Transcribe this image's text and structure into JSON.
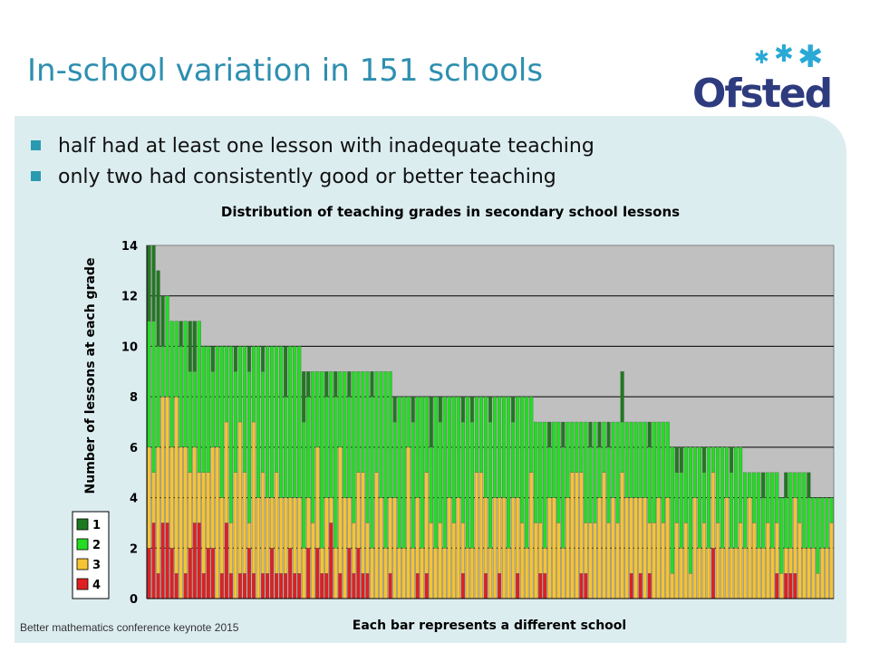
{
  "slide": {
    "title": "In-school variation in 151 schools",
    "bullets": [
      "half had at least one lesson with inadequate teaching",
      "only two had consistently good or better teaching"
    ],
    "footer": "Better mathematics conference keynote 2015",
    "colors": {
      "title": "#2e8fb0",
      "panel": "#dcedf0",
      "bullet": "#2a9ab0",
      "logo": "#2e3b7e",
      "logo_stars": "#2aa9d6"
    }
  },
  "logo": {
    "text": "Ofsted"
  },
  "chart_data": {
    "type": "bar",
    "stacked": true,
    "title": "Distribution of teaching grades in secondary school lessons",
    "xlabel": "Each bar represents a different school",
    "ylabel": "Number of lessons at each grade",
    "ylim": [
      0,
      14
    ],
    "yticks": [
      0,
      2,
      4,
      6,
      8,
      10,
      12,
      14
    ],
    "grid": true,
    "legend_position": "bottom-left",
    "categories_count": 151,
    "totals": [
      14,
      14,
      13,
      12,
      12,
      11,
      11,
      11,
      11,
      11,
      11,
      11,
      10,
      10,
      10,
      10,
      10,
      10,
      10,
      10,
      10,
      10,
      10,
      10,
      10,
      10,
      10,
      10,
      10,
      10,
      10,
      10,
      10,
      10,
      9,
      9,
      9,
      9,
      9,
      9,
      9,
      9,
      9,
      9,
      9,
      9,
      9,
      9,
      9,
      9,
      9,
      9,
      9,
      9,
      8,
      8,
      8,
      8,
      8,
      8,
      8,
      8,
      8,
      8,
      8,
      8,
      8,
      8,
      8,
      8,
      8,
      8,
      8,
      8,
      8,
      8,
      8,
      8,
      8,
      8,
      8,
      8,
      8,
      8,
      8,
      7,
      7,
      7,
      7,
      7,
      7,
      7,
      7,
      7,
      7,
      7,
      7,
      7,
      7,
      7,
      7,
      7,
      7,
      7,
      7,
      7,
      7,
      7,
      7,
      7,
      7,
      7,
      7,
      7,
      7,
      6,
      6,
      6,
      6,
      6,
      6,
      6,
      6,
      6,
      6,
      6,
      6,
      6,
      6,
      6,
      6,
      5,
      5,
      5,
      5,
      5,
      5,
      5,
      5,
      5,
      5,
      5,
      5,
      5,
      5,
      5,
      5,
      4,
      4,
      4,
      4,
      4
    ],
    "series": [
      {
        "name": "1",
        "color": "#1e7a1e",
        "values": [
          3,
          3,
          3,
          2,
          0,
          0,
          0,
          1,
          0,
          2,
          2,
          0,
          0,
          0,
          1,
          0,
          0,
          0,
          0,
          1,
          0,
          0,
          1,
          0,
          0,
          1,
          0,
          0,
          0,
          0,
          2,
          0,
          0,
          0,
          2,
          1,
          0,
          0,
          0,
          1,
          0,
          1,
          0,
          0,
          1,
          0,
          0,
          0,
          0,
          1,
          0,
          0,
          0,
          0,
          1,
          0,
          0,
          0,
          1,
          0,
          0,
          0,
          2,
          0,
          1,
          0,
          0,
          0,
          0,
          1,
          0,
          1,
          0,
          0,
          0,
          1,
          0,
          0,
          0,
          0,
          1,
          0,
          0,
          0,
          0,
          0,
          0,
          0,
          1,
          0,
          0,
          1,
          0,
          0,
          0,
          0,
          0,
          1,
          0,
          1,
          0,
          1,
          0,
          0,
          2,
          0,
          0,
          0,
          0,
          0,
          1,
          0,
          0,
          0,
          0,
          0,
          1,
          1,
          0,
          0,
          0,
          0,
          1,
          0,
          0,
          0,
          0,
          0,
          1,
          0,
          0,
          0,
          0,
          0,
          0,
          1,
          0,
          0,
          0,
          0,
          1,
          0,
          0,
          0,
          0,
          1,
          0,
          0,
          0,
          0,
          0
        ]
      },
      {
        "name": "2",
        "color": "#22dd22",
        "values": [
          5,
          6,
          4,
          2,
          4,
          5,
          3,
          4,
          5,
          4,
          3,
          6,
          5,
          5,
          3,
          4,
          6,
          3,
          7,
          4,
          3,
          5,
          6,
          3,
          6,
          4,
          6,
          6,
          5,
          6,
          4,
          6,
          6,
          6,
          5,
          4,
          6,
          3,
          7,
          4,
          5,
          6,
          3,
          5,
          4,
          6,
          4,
          4,
          6,
          6,
          4,
          5,
          7,
          5,
          3,
          6,
          6,
          2,
          5,
          4,
          6,
          3,
          3,
          6,
          4,
          6,
          4,
          5,
          4,
          4,
          6,
          5,
          3,
          3,
          4,
          5,
          4,
          4,
          4,
          6,
          3,
          4,
          5,
          6,
          3,
          4,
          4,
          5,
          2,
          3,
          4,
          4,
          3,
          2,
          2,
          2,
          4,
          3,
          4,
          2,
          2,
          3,
          3,
          4,
          2,
          3,
          3,
          3,
          3,
          3,
          3,
          4,
          3,
          4,
          3,
          5,
          2,
          3,
          3,
          5,
          2,
          4,
          2,
          4,
          1,
          3,
          4,
          2,
          3,
          4,
          3,
          3,
          1,
          2,
          3,
          2,
          2,
          3,
          2,
          3,
          2,
          3,
          1,
          2,
          3,
          2,
          2,
          3,
          2,
          2,
          1
        ]
      },
      {
        "name": "3",
        "color": "#f5c432",
        "values": [
          4,
          2,
          5,
          5,
          5,
          4,
          7,
          6,
          5,
          3,
          3,
          2,
          4,
          3,
          4,
          6,
          3,
          4,
          2,
          5,
          6,
          4,
          1,
          6,
          4,
          4,
          3,
          2,
          4,
          3,
          3,
          2,
          3,
          3,
          2,
          2,
          3,
          4,
          1,
          3,
          1,
          2,
          5,
          4,
          2,
          2,
          3,
          4,
          2,
          2,
          5,
          4,
          2,
          3,
          4,
          2,
          2,
          6,
          2,
          3,
          2,
          4,
          3,
          2,
          3,
          2,
          4,
          3,
          4,
          2,
          2,
          2,
          5,
          5,
          3,
          2,
          4,
          3,
          4,
          2,
          4,
          3,
          3,
          2,
          5,
          3,
          2,
          1,
          4,
          4,
          3,
          2,
          4,
          5,
          5,
          4,
          2,
          3,
          3,
          4,
          5,
          3,
          4,
          3,
          5,
          4,
          3,
          4,
          3,
          4,
          2,
          3,
          4,
          3,
          4,
          1,
          3,
          2,
          3,
          1,
          4,
          2,
          3,
          2,
          3,
          3,
          2,
          4,
          2,
          2,
          3,
          2,
          4,
          3,
          2,
          2,
          3,
          2,
          2,
          1,
          1,
          1,
          3,
          3,
          2,
          2,
          2,
          1,
          2,
          2,
          3
        ]
      },
      {
        "name": "4",
        "color": "#e02020",
        "values": [
          2,
          3,
          1,
          3,
          3,
          2,
          1,
          0,
          1,
          2,
          3,
          3,
          1,
          2,
          2,
          0,
          1,
          3,
          1,
          0,
          1,
          1,
          2,
          1,
          0,
          1,
          1,
          2,
          1,
          1,
          1,
          2,
          1,
          1,
          0,
          2,
          0,
          2,
          1,
          1,
          3,
          0,
          1,
          0,
          2,
          1,
          2,
          1,
          1,
          0,
          0,
          0,
          0,
          1,
          0,
          0,
          0,
          0,
          0,
          1,
          0,
          1,
          0,
          0,
          0,
          0,
          0,
          0,
          0,
          1,
          0,
          0,
          0,
          0,
          1,
          0,
          0,
          1,
          0,
          0,
          0,
          1,
          0,
          0,
          0,
          0,
          1,
          1,
          0,
          0,
          0,
          0,
          0,
          0,
          0,
          1,
          1,
          0,
          0,
          0,
          0,
          0,
          0,
          0,
          0,
          0,
          1,
          0,
          1,
          0,
          1,
          0,
          0,
          0,
          0,
          0,
          0,
          0,
          0,
          0,
          0,
          0,
          0,
          0,
          2,
          0,
          0,
          0,
          0,
          0,
          0,
          0,
          0,
          0,
          0,
          0,
          0,
          0,
          1,
          0,
          1,
          1,
          1,
          0,
          0,
          0,
          0,
          0,
          0,
          0,
          0
        ]
      }
    ]
  }
}
